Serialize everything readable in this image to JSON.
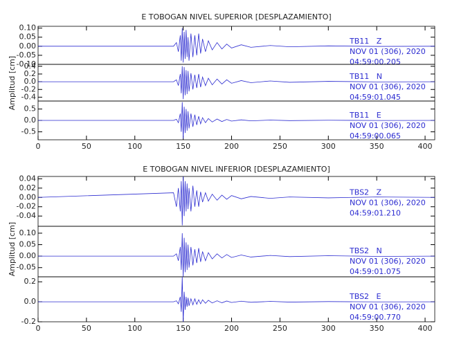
{
  "chart_data": [
    {
      "type": "seismogram",
      "title": "E TOBOGAN NIVEL SUPERIOR [DESPLAZAMIENTO]",
      "y_label": "Amplitud [cm]",
      "color": "#2a2ad0",
      "xlim": [
        0,
        410
      ],
      "xticks": [
        0,
        50,
        100,
        150,
        200,
        250,
        300,
        350,
        400
      ],
      "x": [
        0,
        140,
        143,
        145,
        147,
        148,
        149,
        150,
        151,
        152,
        153,
        154,
        155,
        156,
        158,
        160,
        162,
        164,
        166,
        168,
        170,
        173,
        176,
        180,
        185,
        190,
        195,
        200,
        210,
        220,
        240,
        260,
        300,
        350,
        410
      ],
      "panels": [
        {
          "station": "TB11   Z",
          "date": "NOV 01 (306), 2020",
          "time": "04:59:00.205",
          "ylim": [
            -0.1,
            0.11
          ],
          "yticks": [
            {
              "value": 0.1,
              "label": "0.10"
            },
            0.05,
            {
              "value": 0,
              "label": "0.00"
            },
            -0.05,
            {
              "value": -0.1,
              "label": "-0.10"
            }
          ],
          "values": [
            0,
            0,
            0.02,
            -0.03,
            0.06,
            -0.08,
            0.1,
            -0.09,
            0.08,
            -0.07,
            0.09,
            -0.06,
            0.05,
            -0.08,
            0.07,
            -0.06,
            0.06,
            -0.05,
            0.07,
            -0.04,
            0.04,
            -0.03,
            0.03,
            -0.02,
            0.02,
            -0.015,
            0.012,
            -0.01,
            0.008,
            -0.006,
            0.004,
            -0.003,
            0.002,
            -0.001,
            0
          ]
        },
        {
          "station": "TB11   N",
          "date": "NOV 01 (306), 2020",
          "time": "04:59:01.045",
          "ylim": [
            -0.5,
            0.45
          ],
          "yticks": [
            0.4,
            0.2,
            {
              "value": 0,
              "label": "0.0"
            },
            -0.2,
            -0.4
          ],
          "values": [
            0,
            0,
            0.05,
            -0.1,
            0.2,
            -0.3,
            0.4,
            -0.45,
            0.38,
            -0.35,
            0.3,
            -0.32,
            0.28,
            -0.25,
            0.22,
            -0.2,
            0.18,
            -0.16,
            0.2,
            -0.14,
            0.12,
            -0.1,
            0.09,
            -0.08,
            0.07,
            -0.06,
            0.05,
            -0.04,
            0.03,
            -0.025,
            0.02,
            -0.015,
            0.01,
            -0.005,
            0
          ]
        },
        {
          "station": "TB11   E",
          "date": "NOV 01 (306), 2020",
          "time": "04:59:00.065",
          "ylim": [
            -0.85,
            0.85
          ],
          "yticks": [
            0.5,
            {
              "value": 0,
              "label": "0.0"
            },
            -0.5
          ],
          "values": [
            0,
            0,
            0.05,
            -0.1,
            0.3,
            -0.5,
            0.8,
            -0.8,
            0.6,
            -0.55,
            0.5,
            -0.45,
            0.4,
            -0.35,
            0.3,
            -0.28,
            0.25,
            -0.2,
            0.18,
            -0.15,
            0.12,
            -0.1,
            0.08,
            -0.07,
            0.06,
            -0.05,
            0.04,
            -0.03,
            0.025,
            -0.02,
            0.015,
            -0.01,
            0.008,
            -0.005,
            0
          ]
        }
      ]
    },
    {
      "type": "seismogram",
      "title": "E TOBOGAN NIVEL INFERIOR [DESPLAZAMIENTO]",
      "y_label": "Amplitud [cm]",
      "color": "#2a2ad0",
      "xlim": [
        0,
        410
      ],
      "xticks": [
        0,
        50,
        100,
        150,
        200,
        250,
        300,
        350,
        400
      ],
      "x": [
        0,
        140,
        143,
        145,
        147,
        148,
        149,
        150,
        151,
        152,
        153,
        154,
        155,
        156,
        158,
        160,
        162,
        164,
        166,
        168,
        170,
        173,
        176,
        180,
        185,
        190,
        195,
        200,
        210,
        220,
        240,
        260,
        300,
        350,
        410
      ],
      "panels": [
        {
          "station": "TBS2   Z",
          "date": "NOV 01 (306), 2020",
          "time": "04:59:01.210",
          "ylim": [
            -0.062,
            0.045
          ],
          "yticks": [
            0.04,
            0.02,
            {
              "value": 0,
              "label": "0.00"
            },
            -0.02,
            -0.04
          ],
          "values": [
            0,
            0.01,
            -0.02,
            0.02,
            -0.03,
            0.035,
            -0.06,
            0.045,
            -0.04,
            0.035,
            -0.03,
            0.03,
            -0.025,
            0.02,
            -0.03,
            0.025,
            -0.02,
            0.015,
            -0.02,
            0.012,
            -0.01,
            0.01,
            -0.008,
            0.007,
            -0.006,
            0.005,
            -0.004,
            0.004,
            -0.003,
            0.002,
            -0.002,
            0.001,
            -0.001,
            0.001,
            0
          ]
        },
        {
          "station": "TBS2   N",
          "date": "NOV 01 (306), 2020",
          "time": "04:59:01.075",
          "ylim": [
            -0.09,
            0.13
          ],
          "yticks": [
            {
              "value": 0.1,
              "label": "0.10"
            },
            0.05,
            {
              "value": 0,
              "label": "0.00"
            },
            -0.05
          ],
          "values": [
            0,
            0,
            0.01,
            -0.02,
            0.04,
            -0.06,
            0.1,
            -0.09,
            0.08,
            -0.07,
            0.06,
            -0.06,
            0.05,
            -0.05,
            0.04,
            -0.04,
            0.03,
            -0.03,
            0.035,
            -0.025,
            0.02,
            -0.02,
            0.015,
            -0.012,
            0.01,
            -0.008,
            0.007,
            -0.006,
            0.005,
            -0.004,
            0.003,
            -0.002,
            0.002,
            -0.001,
            0
          ]
        },
        {
          "station": "TBS2   E",
          "date": "NOV 01 (306), 2020",
          "time": "04:59:00.770",
          "ylim": [
            -0.2,
            0.25
          ],
          "yticks": [
            0.2,
            {
              "value": 0,
              "label": "0.0"
            },
            -0.2
          ],
          "values": [
            0,
            0,
            0.01,
            -0.02,
            0.05,
            -0.1,
            0.25,
            -0.2,
            0.1,
            -0.08,
            0.05,
            -0.05,
            0.04,
            -0.04,
            0.03,
            -0.03,
            0.03,
            -0.025,
            0.02,
            -0.02,
            0.02,
            -0.015,
            0.015,
            -0.012,
            0.01,
            -0.01,
            0.008,
            -0.007,
            0.006,
            -0.005,
            0.004,
            -0.003,
            0.002,
            -0.001,
            0
          ]
        }
      ]
    }
  ]
}
